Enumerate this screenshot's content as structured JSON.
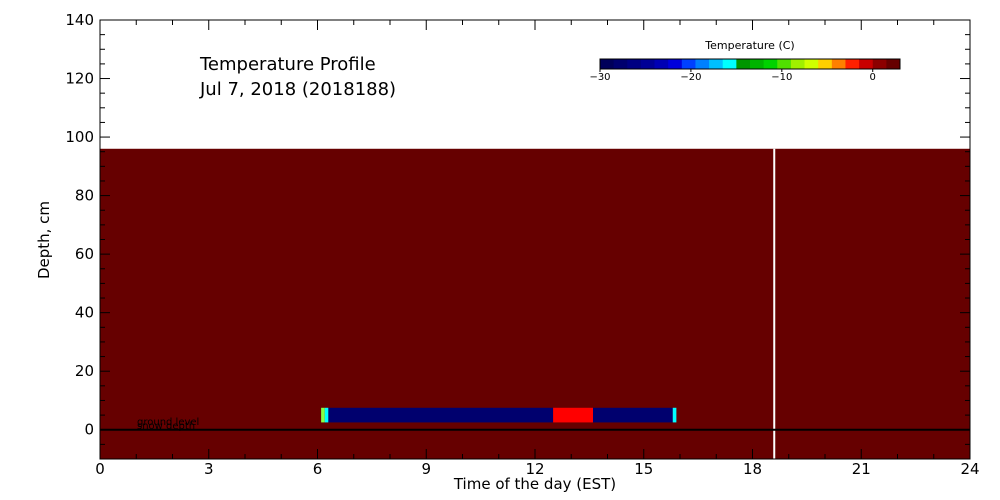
{
  "chart_data": {
    "type": "heatmap",
    "title": "Temperature Profile",
    "subtitle": "Jul  7, 2018 (2018188)",
    "xlabel": "Time of the day (EST)",
    "ylabel": "Depth, cm",
    "xlim": [
      0,
      24
    ],
    "ylim": [
      -10,
      140
    ],
    "xticks": [
      0,
      3,
      6,
      9,
      12,
      15,
      18,
      21,
      24
    ],
    "yticks": [
      0,
      20,
      40,
      60,
      80,
      100,
      120,
      140
    ],
    "background_field": {
      "x0": 0,
      "x1": 24,
      "y0": -10,
      "y1": 96,
      "color": "#660000"
    },
    "marker_line": {
      "x": 18.6,
      "color": "#ffffff"
    },
    "ground_line": {
      "y": 0,
      "label_ground": "ground level",
      "label_snow": "snow depth"
    },
    "sensor_band": {
      "y0": 2.5,
      "y1": 7.5,
      "segments": [
        {
          "x0": 6.1,
          "x1": 6.2,
          "color": "#88ff44"
        },
        {
          "x0": 6.2,
          "x1": 6.3,
          "color": "#00ffff"
        },
        {
          "x0": 6.3,
          "x1": 12.5,
          "color": "#00006e"
        },
        {
          "x0": 12.5,
          "x1": 13.6,
          "color": "#ff0000"
        },
        {
          "x0": 13.6,
          "x1": 15.8,
          "color": "#00006e"
        },
        {
          "x0": 15.8,
          "x1": 15.9,
          "color": "#00ffff"
        }
      ]
    },
    "colorbar": {
      "title": "Temperature (C)",
      "min": -30,
      "max": 3,
      "tick_values": [
        -30,
        -20,
        -10,
        0
      ],
      "tick_labels": [
        "−30",
        "−20",
        "−10",
        "0"
      ],
      "colors": [
        "#00005a",
        "#00006e",
        "#000082",
        "#000096",
        "#0000b4",
        "#0000dc",
        "#0040ff",
        "#0080ff",
        "#00c0ff",
        "#00ffff",
        "#009600",
        "#00b400",
        "#00d200",
        "#50e000",
        "#a0f000",
        "#d0ff00",
        "#ffd000",
        "#ff8000",
        "#ff2000",
        "#c80000",
        "#8c0000",
        "#660000"
      ]
    }
  }
}
